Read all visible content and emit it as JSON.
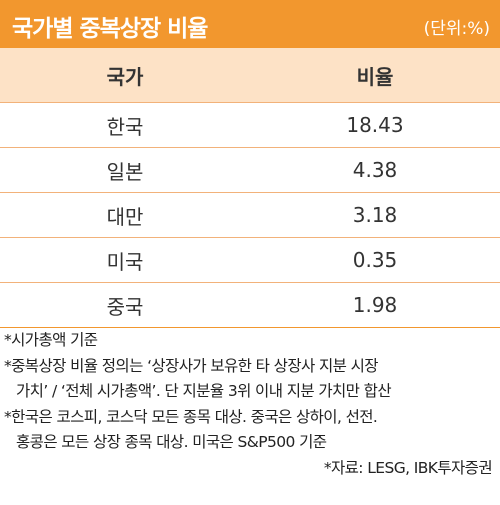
{
  "header": {
    "title": "국가별 중복상장 비율",
    "unit": "(단위:%)"
  },
  "table": {
    "columns": [
      "국가",
      "비율"
    ],
    "rows": [
      [
        "한국",
        18.43
      ],
      [
        "일본",
        4.38
      ],
      [
        "대만",
        3.18
      ],
      [
        "미국",
        0.35
      ],
      [
        "중국",
        1.98
      ]
    ]
  },
  "notes": [
    "*시가총액 기준",
    "*중복상장 비율 정의는 ‘상장사가 보유한 타 상장사 지분 시장",
    "가치’ / ‘전체 시가총액’. 단 지분율 3위 이내 지분 가치만 합산",
    "*한국은 코스피, 코스닥 모든 종목 대상. 중국은 상하이, 선전.",
    "홍콩은 모든 상장 종목 대상. 미국은 S&P500 기준"
  ],
  "source": "*자료: LESG, IBK투자증권"
}
